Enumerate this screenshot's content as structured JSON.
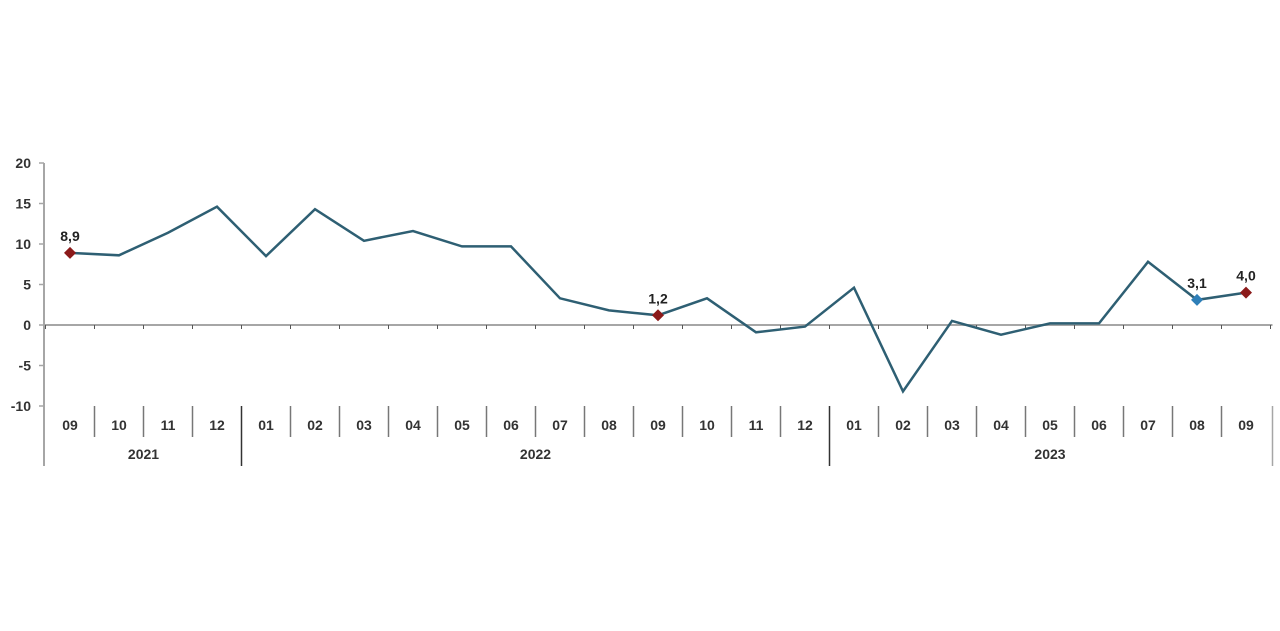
{
  "chart_data": {
    "type": "line",
    "title": "",
    "xlabel": "",
    "ylabel": "",
    "ylim": [
      -10,
      20
    ],
    "yticks": [
      20,
      15,
      10,
      5,
      0,
      -5,
      -10
    ],
    "grid": false,
    "legend": null,
    "categories": [
      "09",
      "10",
      "11",
      "12",
      "01",
      "02",
      "03",
      "04",
      "05",
      "06",
      "07",
      "08",
      "09",
      "10",
      "11",
      "12",
      "01",
      "02",
      "03",
      "04",
      "05",
      "06",
      "07",
      "08",
      "09"
    ],
    "year_groups": [
      {
        "label": "2021",
        "start": 0,
        "end": 3
      },
      {
        "label": "2022",
        "start": 4,
        "end": 15
      },
      {
        "label": "2023",
        "start": 16,
        "end": 24
      }
    ],
    "series": [
      {
        "name": "series",
        "color": "#2e5f73",
        "values": [
          8.9,
          8.6,
          11.4,
          14.6,
          8.5,
          14.3,
          10.4,
          11.6,
          9.7,
          9.7,
          3.3,
          1.8,
          1.2,
          3.3,
          -0.9,
          -0.2,
          4.6,
          -8.2,
          0.5,
          -1.2,
          0.2,
          0.2,
          7.8,
          3.1,
          4.0
        ]
      }
    ],
    "annotations": [
      {
        "index": 0,
        "label": "8,9",
        "marker_color": "#8b1a1a"
      },
      {
        "index": 12,
        "label": "1,2",
        "marker_color": "#8b1a1a"
      },
      {
        "index": 23,
        "label": "3,1",
        "marker_color": "#2e7fb8"
      },
      {
        "index": 24,
        "label": "4,0",
        "marker_color": "#8b1a1a"
      }
    ]
  },
  "colors": {
    "line": "#2e5f73",
    "axis": "#a6a6a6",
    "separator": "#333333",
    "marker_red": "#8b1a1a",
    "marker_blue": "#2e7fb8"
  }
}
